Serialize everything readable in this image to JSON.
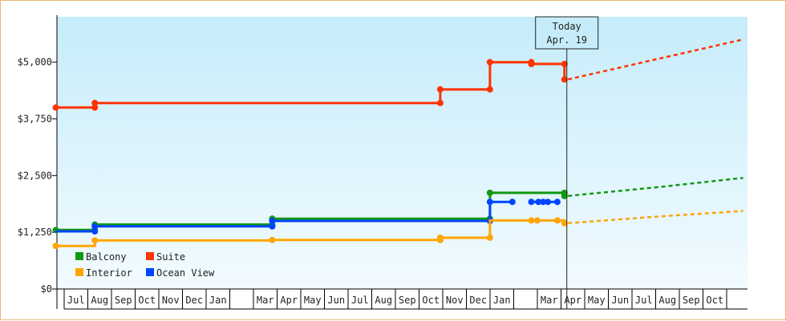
{
  "chart_data": {
    "type": "line",
    "title": "",
    "xlabel": "",
    "ylabel": "",
    "ylim": [
      0,
      6000
    ],
    "y_ticks": [
      {
        "value": 0,
        "label": "$0"
      },
      {
        "value": 1250,
        "label": "$1,250"
      },
      {
        "value": 2500,
        "label": "$2,500"
      },
      {
        "value": 3750,
        "label": "$3,750"
      },
      {
        "value": 5000,
        "label": "$5,000"
      }
    ],
    "x_range_months": [
      0,
      29
    ],
    "month_labels": [
      {
        "m": 1,
        "label": "Jul"
      },
      {
        "m": 2,
        "label": "Aug"
      },
      {
        "m": 3,
        "label": "Sep"
      },
      {
        "m": 4,
        "label": "Oct"
      },
      {
        "m": 5,
        "label": "Nov"
      },
      {
        "m": 6,
        "label": "Dec"
      },
      {
        "m": 7,
        "label": "Jan"
      },
      {
        "m": 9,
        "label": "Mar"
      },
      {
        "m": 10,
        "label": "Apr"
      },
      {
        "m": 11,
        "label": "May"
      },
      {
        "m": 12,
        "label": "Jun"
      },
      {
        "m": 13,
        "label": "Jul"
      },
      {
        "m": 14,
        "label": "Aug"
      },
      {
        "m": 15,
        "label": "Sep"
      },
      {
        "m": 16,
        "label": "Oct"
      },
      {
        "m": 17,
        "label": "Nov"
      },
      {
        "m": 18,
        "label": "Dec"
      },
      {
        "m": 19,
        "label": "Jan"
      },
      {
        "m": 21,
        "label": "Mar"
      },
      {
        "m": 22,
        "label": "Apr"
      },
      {
        "m": 23,
        "label": "May"
      },
      {
        "m": 24,
        "label": "Jun"
      },
      {
        "m": 25,
        "label": "Jul"
      },
      {
        "m": 26,
        "label": "Aug"
      },
      {
        "m": 27,
        "label": "Sep"
      },
      {
        "m": 28,
        "label": "Oct"
      }
    ],
    "today": {
      "m": 21.55,
      "line1": "Today",
      "line2": "Apr. 19"
    },
    "series": [
      {
        "name": "Suite",
        "color": "#ff3300",
        "points": [
          [
            -0.05,
            4000
          ],
          [
            1.6,
            4000
          ],
          [
            1.6,
            4100
          ],
          [
            16.2,
            4100
          ],
          [
            16.2,
            4400
          ],
          [
            18.3,
            4400
          ],
          [
            18.3,
            5000
          ],
          [
            20.05,
            5000
          ],
          [
            20.05,
            4960
          ],
          [
            21.45,
            4960
          ],
          [
            21.45,
            4620
          ]
        ],
        "markers": [
          [
            -0.05,
            4000
          ],
          [
            1.6,
            4000
          ],
          [
            1.6,
            4100
          ],
          [
            16.2,
            4100
          ],
          [
            16.2,
            4400
          ],
          [
            18.3,
            4400
          ],
          [
            18.3,
            5000
          ],
          [
            20.05,
            5000
          ],
          [
            20.05,
            4960
          ],
          [
            21.45,
            4960
          ],
          [
            21.45,
            4620
          ]
        ],
        "forecast": [
          [
            21.6,
            4620
          ],
          [
            29,
            5500
          ]
        ]
      },
      {
        "name": "Balcony",
        "color": "#119911",
        "points": [
          [
            -0.05,
            1300
          ],
          [
            1.6,
            1300
          ],
          [
            1.6,
            1420
          ],
          [
            9.1,
            1420
          ],
          [
            9.1,
            1550
          ],
          [
            18.3,
            1550
          ],
          [
            18.3,
            2120
          ],
          [
            21.45,
            2120
          ],
          [
            21.45,
            2050
          ]
        ],
        "markers": [
          [
            -0.05,
            1300
          ],
          [
            1.6,
            1300
          ],
          [
            1.6,
            1420
          ],
          [
            9.1,
            1420
          ],
          [
            9.1,
            1550
          ],
          [
            18.3,
            1550
          ],
          [
            18.3,
            2120
          ],
          [
            21.45,
            2120
          ],
          [
            21.45,
            2050
          ]
        ],
        "forecast": [
          [
            21.6,
            2050
          ],
          [
            25.5,
            2250
          ],
          [
            29,
            2450
          ]
        ]
      },
      {
        "name": "Ocean View",
        "color": "#0044ff",
        "points": [
          [
            -0.05,
            1270
          ],
          [
            1.6,
            1270
          ],
          [
            1.6,
            1380
          ],
          [
            9.1,
            1380
          ],
          [
            9.1,
            1500
          ],
          [
            18.3,
            1500
          ],
          [
            18.3,
            1920
          ],
          [
            19.25,
            1920
          ]
        ],
        "markers": [
          [
            1.6,
            1270
          ],
          [
            1.6,
            1380
          ],
          [
            9.1,
            1380
          ],
          [
            9.1,
            1500
          ],
          [
            18.3,
            1500
          ],
          [
            18.3,
            1920
          ],
          [
            19.25,
            1920
          ]
        ],
        "segments": [
          {
            "points": [
              [
                20.05,
                1920
              ],
              [
                21.15,
                1920
              ]
            ],
            "markers": [
              [
                20.05,
                1920
              ],
              [
                20.35,
                1920
              ],
              [
                20.55,
                1920
              ],
              [
                20.75,
                1920
              ],
              [
                21.15,
                1920
              ]
            ]
          }
        ],
        "forecast": []
      },
      {
        "name": "Interior",
        "color": "#ffa500",
        "points": [
          [
            -0.05,
            950
          ],
          [
            1.6,
            950
          ],
          [
            1.6,
            1070
          ],
          [
            9.1,
            1070
          ],
          [
            9.1,
            1080
          ],
          [
            16.2,
            1080
          ],
          [
            16.2,
            1130
          ],
          [
            18.3,
            1130
          ],
          [
            18.3,
            1510
          ],
          [
            21.45,
            1510
          ],
          [
            21.45,
            1450
          ]
        ],
        "markers": [
          [
            -0.05,
            950
          ],
          [
            1.6,
            1070
          ],
          [
            9.1,
            1080
          ],
          [
            16.2,
            1080
          ],
          [
            16.2,
            1130
          ],
          [
            18.3,
            1130
          ],
          [
            20.05,
            1510
          ],
          [
            20.3,
            1510
          ],
          [
            21.15,
            1510
          ],
          [
            21.45,
            1450
          ]
        ],
        "forecast": [
          [
            21.6,
            1450
          ],
          [
            25.5,
            1600
          ],
          [
            29,
            1720
          ]
        ]
      }
    ],
    "legend": {
      "position": "bottom-left",
      "items": [
        {
          "name": "Balcony",
          "color": "#119911"
        },
        {
          "name": "Suite",
          "color": "#ff3300"
        },
        {
          "name": "Interior",
          "color": "#ffa500"
        },
        {
          "name": "Ocean View",
          "color": "#0044ff"
        }
      ]
    }
  }
}
